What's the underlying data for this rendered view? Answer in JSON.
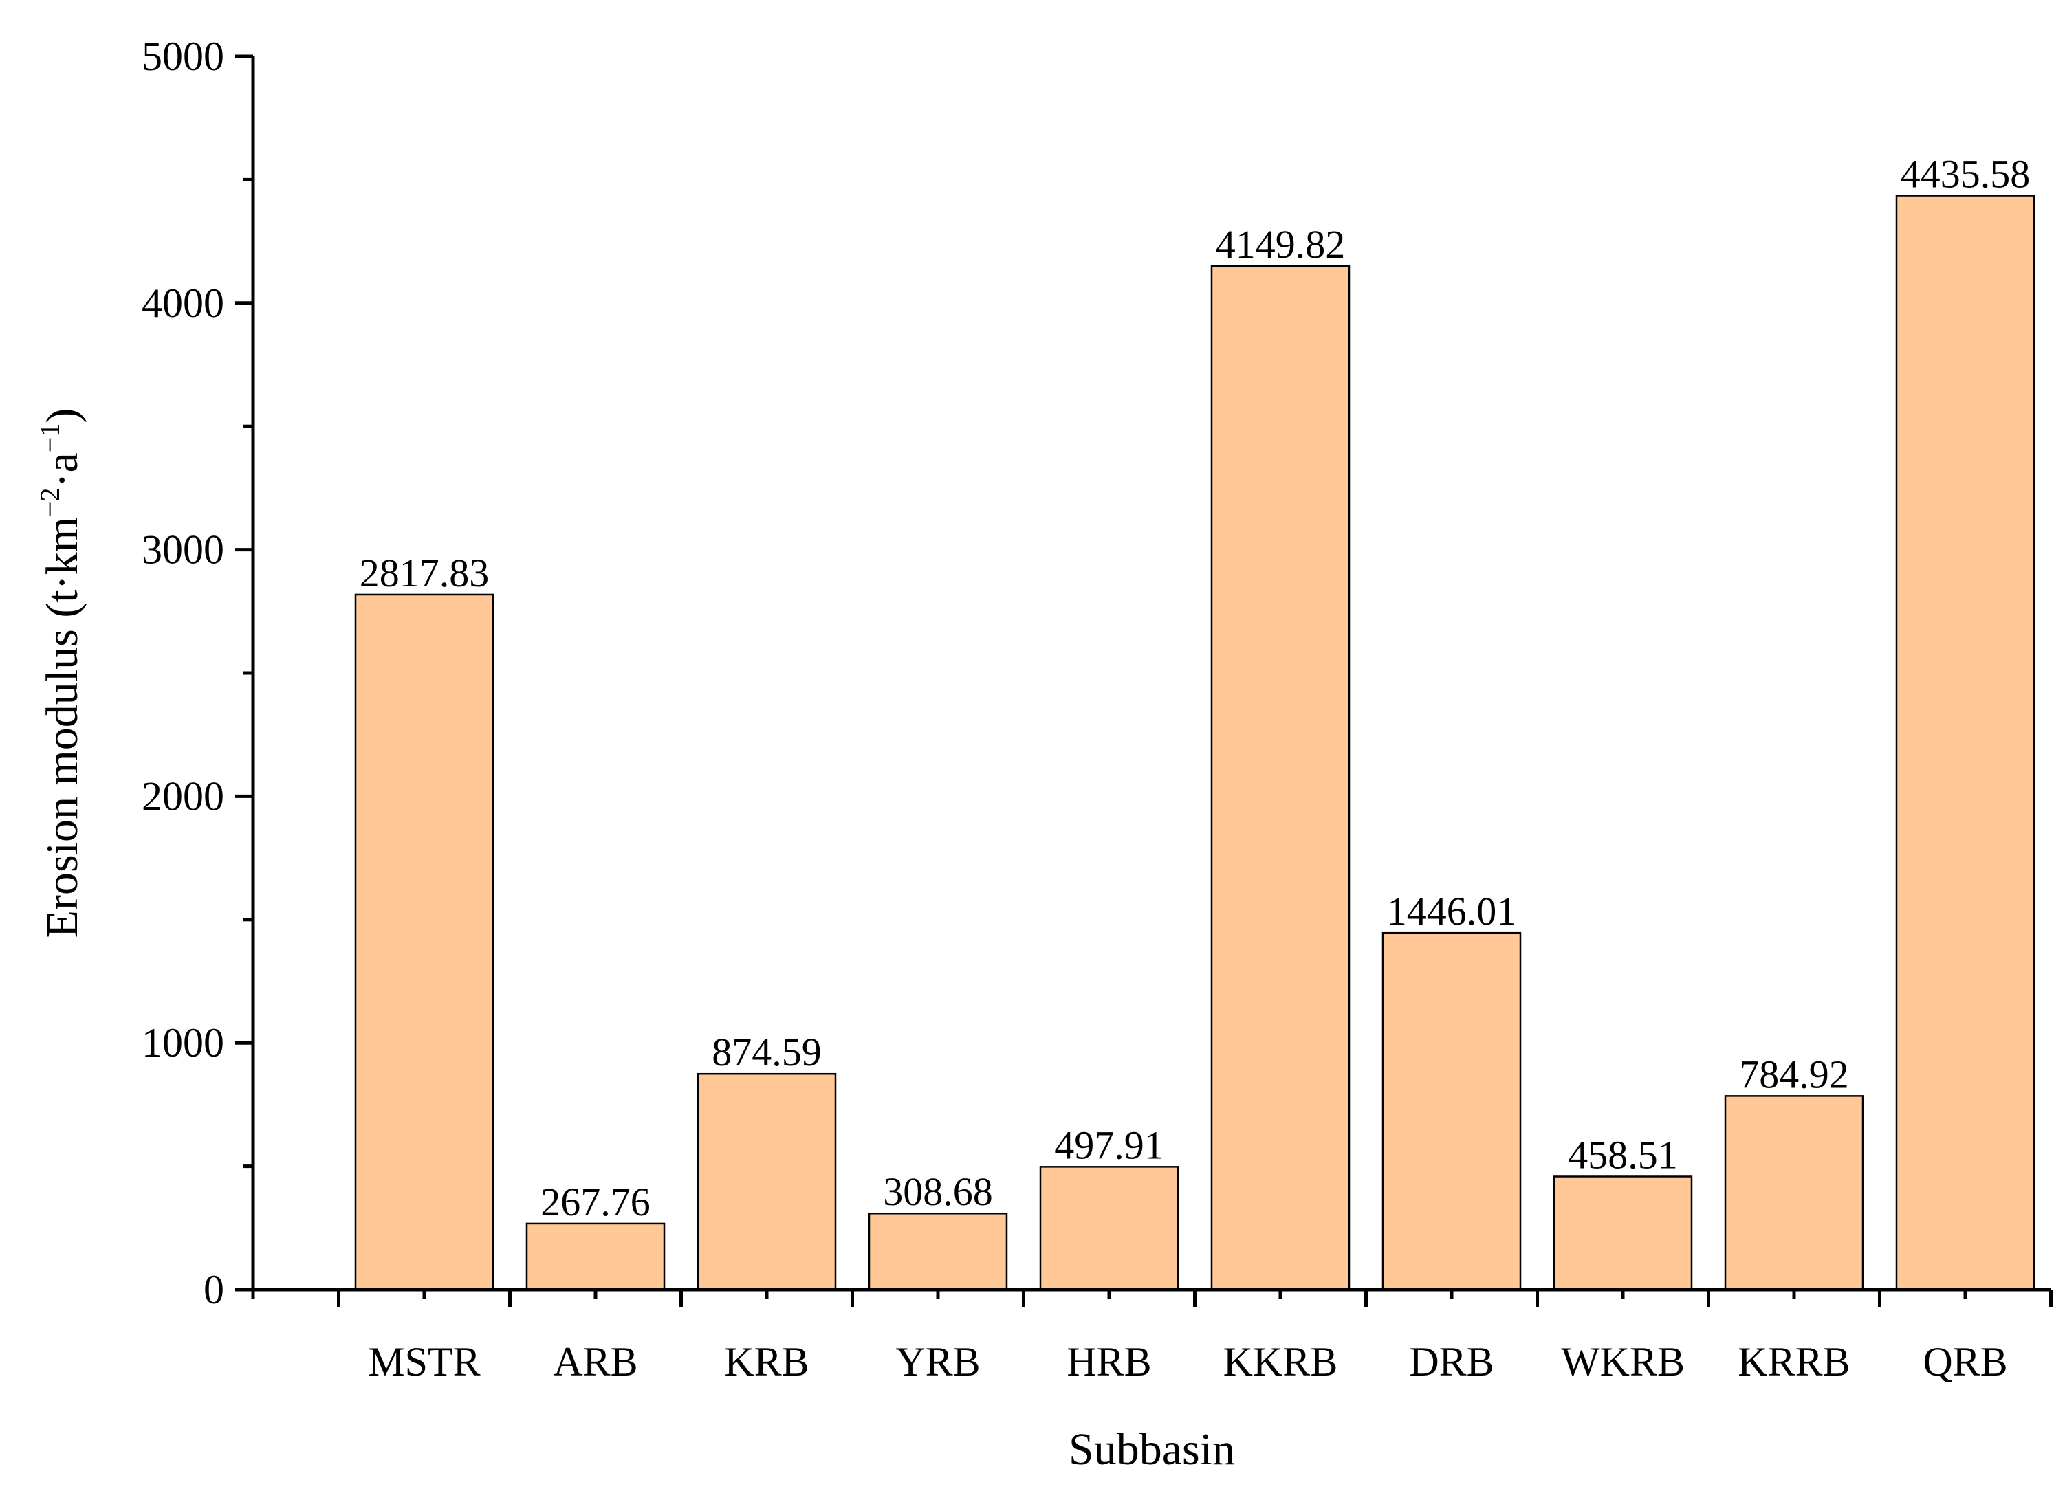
{
  "chart_data": {
    "type": "bar",
    "categories": [
      "MSTR",
      "ARB",
      "KRB",
      "YRB",
      "HRB",
      "KKRB",
      "DRB",
      "WKRB",
      "KRRB",
      "QRB"
    ],
    "values": [
      2817.83,
      267.76,
      874.59,
      308.68,
      497.91,
      4149.82,
      1446.01,
      458.51,
      784.92,
      4435.58
    ],
    "value_labels": [
      "2817.83",
      "267.76",
      "874.59",
      "308.68",
      "497.91",
      "4149.82",
      "1446.01",
      "458.51",
      "784.92",
      "4435.58"
    ],
    "title": "",
    "xlabel": "Subbasin",
    "ylabel": {
      "prefix": "Erosion modulus (t·km",
      "sup1": "−2",
      "mid": "·a",
      "sup2": "−1",
      "suffix": ")"
    },
    "ylim": [
      0,
      5000
    ],
    "yticks": [
      0,
      1000,
      2000,
      3000,
      4000,
      5000
    ],
    "ytick_labels": [
      "0",
      "1000",
      "2000",
      "3000",
      "4000",
      "5000"
    ],
    "grid": false,
    "legend": "none",
    "colors": {
      "bar_fill": "#FFC896",
      "bar_edge": "#000000"
    }
  }
}
